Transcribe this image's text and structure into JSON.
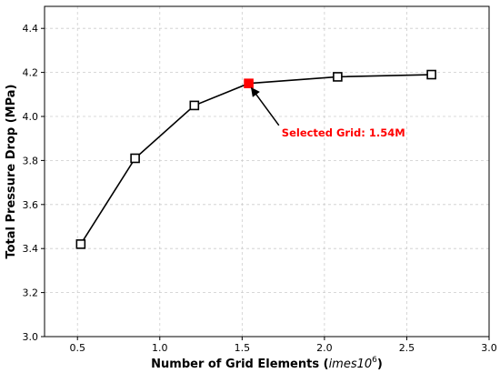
{
  "chart_data": {
    "type": "line",
    "title": "",
    "xlabel": "Number of Grid Elements (",
    "xlabel_math": "imes10",
    "xlabel_sup": "6",
    "xlabel_close": ")",
    "ylabel": "Total Pressure Drop (MPa)",
    "xlim": [
      0.3,
      3.0
    ],
    "ylim": [
      3.0,
      4.5
    ],
    "xticks": [
      0.5,
      1.0,
      1.5,
      2.0,
      2.5,
      3.0
    ],
    "xtick_labels": [
      "0.5",
      "1.0",
      "1.5",
      "2.0",
      "2.5",
      "3.0"
    ],
    "yticks": [
      3.0,
      3.2,
      3.4,
      3.6,
      3.8,
      4.0,
      4.2,
      4.4
    ],
    "ytick_labels": [
      "3.0",
      "3.2",
      "3.4",
      "3.6",
      "3.8",
      "4.0",
      "4.2",
      "4.4"
    ],
    "grid": true,
    "series": [
      {
        "x": [
          0.52,
          0.85,
          1.21,
          1.54,
          2.08,
          2.65
        ],
        "y": [
          3.42,
          3.81,
          4.05,
          4.15,
          4.18,
          4.19
        ],
        "color": "#000000",
        "marker": "square-open"
      }
    ],
    "highlight": {
      "x": 1.54,
      "y": 4.15,
      "color": "#ff0000"
    },
    "annotation": {
      "text": "Selected Grid: 1.54M",
      "color": "#ff0000",
      "text_x": 1.74,
      "text_y": 3.91
    }
  }
}
